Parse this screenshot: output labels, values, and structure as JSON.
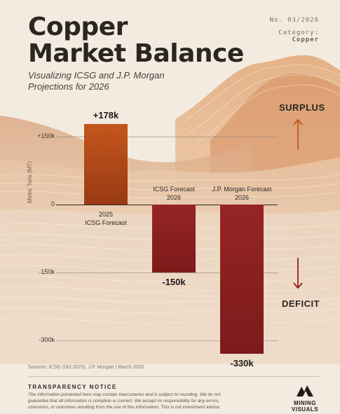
{
  "header": {
    "title_line1": "Copper",
    "title_line2": "Market Balance",
    "subtitle": "Visualizing ICSG and J.P. Morgan Projections for 2026",
    "issue_number": "No. 03/2026",
    "category_label": "Category:",
    "category_value": "Copper"
  },
  "colors": {
    "background": "#f3ebe0",
    "surplus_bar": "#c4561c",
    "deficit_bar": "#8e2020",
    "text_dark": "#2b2622"
  },
  "chart_data": {
    "type": "bar",
    "ylabel": "Metric Tons (MT)",
    "ylim": [
      -330,
      178
    ],
    "yticks": [
      {
        "value": 150,
        "label": "+150k"
      },
      {
        "value": 0,
        "label": "0"
      },
      {
        "value": -150,
        "label": "-150k"
      },
      {
        "value": -300,
        "label": "-300k"
      }
    ],
    "grid": true,
    "categories": [
      {
        "line1": "2025",
        "line2": "ICSG Forecast",
        "position": "below"
      },
      {
        "line1": "ICSG Forecast",
        "line2": "2026",
        "position": "above"
      },
      {
        "line1": "J.P. Morgan Forecast",
        "line2": "2026",
        "position": "above"
      }
    ],
    "values": [
      178,
      -150,
      -330
    ],
    "value_labels": [
      "+178k",
      "-150k",
      "-330k"
    ]
  },
  "annotations": {
    "surplus": "SURPLUS",
    "deficit": "DEFICIT"
  },
  "footer": {
    "sources": "Sources: ICSG (Oct 2025), J.P. Morgan | March 2026",
    "notice_title": "TRANSPARENCY NOTICE",
    "notice_text": "The information presented here may contain inaccuracies and is subject to rounding. We do not guarantee that all information is complete or correct. We accept no responsibility for any errors, omissions, or outcomes resulting from the use of this information. This is not investment advice.",
    "logo_line1": "MINING",
    "logo_line2": "VISUALS"
  }
}
